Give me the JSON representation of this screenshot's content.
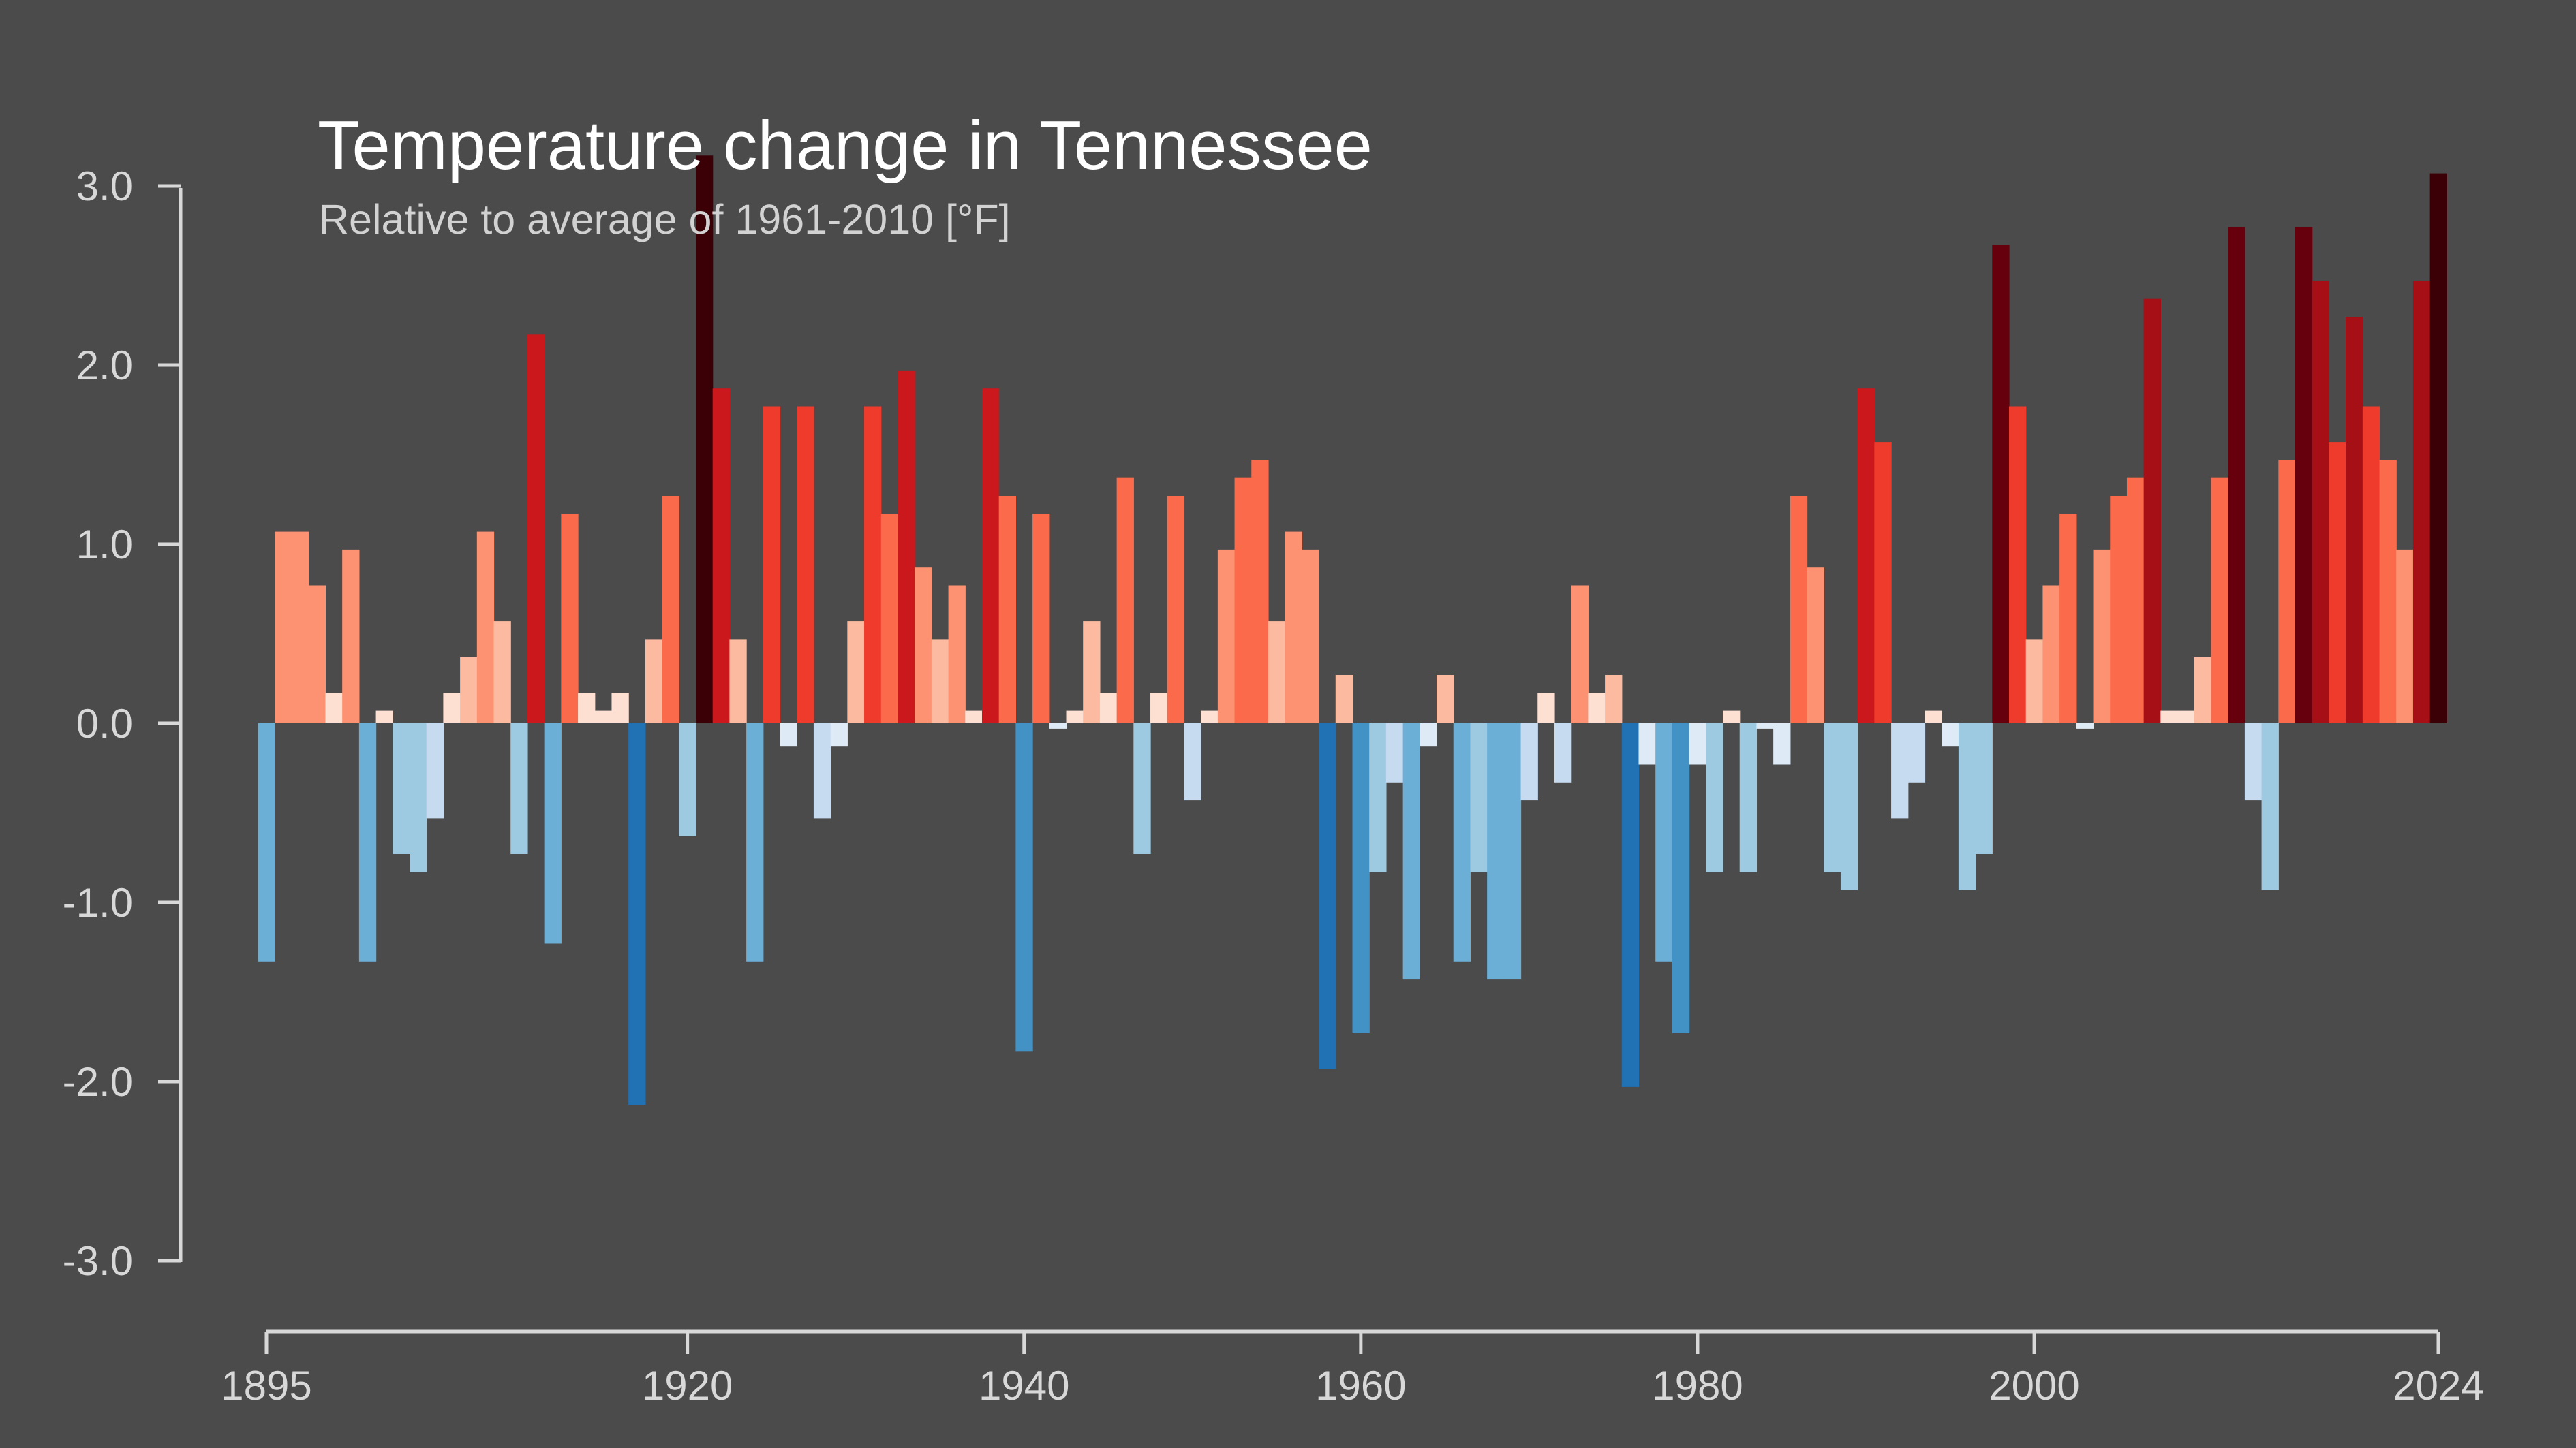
{
  "chart_data": {
    "type": "bar",
    "title": "Temperature change in Tennessee",
    "subtitle": "Relative to average of 1961-2010  [°F]",
    "xlabel": "",
    "ylabel": "",
    "xlim": [
      1895,
      2024
    ],
    "ylim": [
      -3.0,
      3.0
    ],
    "grid": false,
    "legend": "none",
    "x_ticks": [
      "1895",
      "1920",
      "1940",
      "1960",
      "1980",
      "2000",
      "2024"
    ],
    "y_ticks": [
      "3.0",
      "2.0",
      "1.0",
      "0.0",
      "-1.0",
      "-2.0",
      "-3.0"
    ],
    "colors": {
      "background": "#4b4b4b",
      "axis": "#d8d8d8",
      "warm": [
        "#fee0d2",
        "#fcbba1",
        "#fc9272",
        "#fb6a4a",
        "#ef3b2c",
        "#cb181d",
        "#a50f15",
        "#67000d",
        "#3a0006"
      ],
      "cool": [
        "#deebf7",
        "#c6dbef",
        "#9ecae1",
        "#6baed6",
        "#4292c6",
        "#2171b5"
      ]
    },
    "x": [
      1895,
      1896,
      1897,
      1898,
      1899,
      1900,
      1901,
      1902,
      1903,
      1904,
      1905,
      1906,
      1907,
      1908,
      1909,
      1910,
      1911,
      1912,
      1913,
      1914,
      1915,
      1916,
      1917,
      1918,
      1919,
      1920,
      1921,
      1922,
      1923,
      1924,
      1925,
      1926,
      1927,
      1928,
      1929,
      1930,
      1931,
      1932,
      1933,
      1934,
      1935,
      1936,
      1937,
      1938,
      1939,
      1940,
      1941,
      1942,
      1943,
      1944,
      1945,
      1946,
      1947,
      1948,
      1949,
      1950,
      1951,
      1952,
      1953,
      1954,
      1955,
      1956,
      1957,
      1958,
      1959,
      1960,
      1961,
      1962,
      1963,
      1964,
      1965,
      1966,
      1967,
      1968,
      1969,
      1970,
      1971,
      1972,
      1973,
      1974,
      1975,
      1976,
      1977,
      1978,
      1979,
      1980,
      1981,
      1982,
      1983,
      1984,
      1985,
      1986,
      1987,
      1988,
      1989,
      1990,
      1991,
      1992,
      1993,
      1994,
      1995,
      1996,
      1997,
      1998,
      1999,
      2000,
      2001,
      2002,
      2003,
      2004,
      2005,
      2006,
      2007,
      2008,
      2009,
      2010,
      2011,
      2012,
      2013,
      2014,
      2015,
      2016,
      2017,
      2018,
      2019,
      2020,
      2021,
      2022,
      2023,
      2024
    ],
    "values": [
      -1.33,
      1.07,
      1.07,
      0.77,
      0.17,
      0.97,
      -1.33,
      0.07,
      -0.73,
      -0.83,
      -0.53,
      0.17,
      0.37,
      1.07,
      0.57,
      -0.73,
      2.17,
      -1.23,
      1.17,
      0.17,
      0.07,
      0.17,
      -2.13,
      0.47,
      1.27,
      -0.63,
      3.17,
      1.87,
      0.47,
      -1.33,
      1.77,
      -0.13,
      1.77,
      -0.53,
      -0.13,
      0.57,
      1.77,
      1.17,
      1.97,
      0.87,
      0.47,
      0.77,
      0.07,
      1.87,
      1.27,
      -1.83,
      1.17,
      -0.03,
      0.07,
      0.57,
      0.17,
      1.37,
      -0.73,
      0.17,
      1.27,
      -0.43,
      0.07,
      0.97,
      1.37,
      1.47,
      0.57,
      1.07,
      0.97,
      -1.93,
      0.27,
      -1.73,
      -0.83,
      -0.33,
      -1.43,
      -0.13,
      0.27,
      -1.33,
      -0.83,
      -1.43,
      -1.43,
      -0.43,
      0.17,
      -0.33,
      0.77,
      0.17,
      0.27,
      -2.03,
      -0.23,
      -1.33,
      -1.73,
      -0.23,
      -0.83,
      0.07,
      -0.83,
      -0.03,
      -0.23,
      1.27,
      0.87,
      -0.83,
      -0.93,
      1.87,
      1.57,
      -0.53,
      -0.33,
      0.07,
      -0.13,
      -0.93,
      -0.73,
      2.67,
      1.77,
      0.47,
      0.77,
      1.17,
      -0.03,
      0.97,
      1.27,
      1.37,
      2.37,
      0.07,
      0.07,
      0.37,
      1.37,
      2.77,
      -0.43,
      -0.93,
      1.47,
      2.77,
      2.47,
      1.57,
      2.27,
      1.77,
      1.47,
      0.97,
      2.47,
      3.07
    ]
  }
}
